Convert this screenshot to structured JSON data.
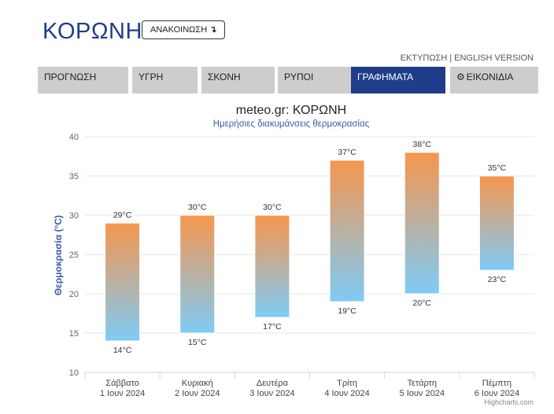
{
  "header": {
    "title": "ΚΟΡΩΝΗ",
    "announce_label": "ΑΝΑΚΟΙΝΩΣΗ",
    "announce_icon": "arrow-down-icon",
    "print_link": "ΕΚΤΥΠΩΣΗ",
    "separator": "|",
    "english_link": "ENGLISH VERSION"
  },
  "tabs": [
    {
      "label": "ΠΡΟΓΝΩΣΗ",
      "active": false
    },
    {
      "label": "ΥΓΡΗ",
      "active": false
    },
    {
      "label": "ΣΚΟΝΗ",
      "active": false
    },
    {
      "label": "ΡΥΠΟΙ",
      "active": false
    },
    {
      "label": "ΓΡΑΦΗΜΑΤΑ",
      "active": true
    },
    {
      "label": "ΕΙΚΟΝΙΔΙΑ",
      "active": false,
      "icon": "gear-icon"
    }
  ],
  "colors": {
    "brand": "#1f3d8a",
    "bar_top": "#f6964d",
    "bar_bottom": "#7fcbf7",
    "tab_bg": "#cdcdcd"
  },
  "chart_data": {
    "type": "bar",
    "subtype": "range",
    "title": "meteo.gr: ΚΟΡΩΝΗ",
    "subtitle": "Ημερήσιες διακυμάνσεις θερμοκρασίας",
    "ylabel": "Θερμοκρασία (°C)",
    "ylim": [
      10,
      40
    ],
    "yticks": [
      10,
      15,
      20,
      25,
      30,
      35,
      40
    ],
    "unit": "°C",
    "grid": true,
    "categories": [
      [
        "Σάββατο",
        "1 Ιουν 2024"
      ],
      [
        "Κυριακή",
        "2 Ιουν 2024"
      ],
      [
        "Δευτέρα",
        "3 Ιουν 2024"
      ],
      [
        "Τρίτη",
        "4 Ιουν 2024"
      ],
      [
        "Τετάρτη",
        "5 Ιουν 2024"
      ],
      [
        "Πέμπτη",
        "6 Ιουν 2024"
      ]
    ],
    "min": [
      14,
      15,
      17,
      19,
      20,
      23
    ],
    "max": [
      29,
      30,
      30,
      37,
      38,
      35
    ]
  },
  "credit": "Highcharts.com"
}
